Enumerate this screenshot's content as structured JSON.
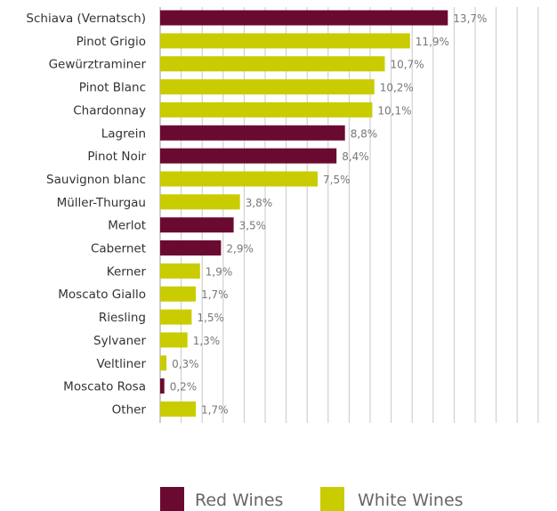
{
  "chart_data": {
    "type": "bar",
    "orientation": "horizontal",
    "title": "",
    "xlabel": "",
    "ylabel": "",
    "xlim": [
      0,
      18.75
    ],
    "grid": true,
    "legend_position": "bottom",
    "categories": [
      "Schiava (Vernatsch)",
      "Pinot Grigio",
      "Gewürztraminer",
      "Pinot Blanc",
      "Chardonnay",
      "Lagrein",
      "Pinot Noir",
      "Sauvignon blanc",
      "Müller-Thurgau",
      "Merlot",
      "Cabernet",
      "Kerner",
      "Moscato Giallo",
      "Riesling",
      "Sylvaner",
      "Veltliner",
      "Moscato Rosa",
      "Other"
    ],
    "values": [
      13.7,
      11.9,
      10.7,
      10.2,
      10.1,
      8.8,
      8.4,
      7.5,
      3.8,
      3.5,
      2.9,
      1.9,
      1.7,
      1.5,
      1.3,
      0.3,
      0.2,
      1.7
    ],
    "value_labels": [
      "13,7%",
      "11,9%",
      "10,7%",
      "10,2%",
      "10,1%",
      "8,8%",
      "8,4%",
      "7,5%",
      "3,8%",
      "3,5%",
      "2,9%",
      "1,9%",
      "1,7%",
      "1,5%",
      "1,3%",
      "0,3%",
      "0,2%",
      "1,7%"
    ],
    "groups": [
      "red",
      "white",
      "white",
      "white",
      "white",
      "red",
      "red",
      "white",
      "white",
      "red",
      "red",
      "white",
      "white",
      "white",
      "white",
      "white",
      "red",
      "white"
    ],
    "legend": [
      {
        "key": "red",
        "label": "Red Wines",
        "color": "#6b0a30"
      },
      {
        "key": "white",
        "label": "White Wines",
        "color": "#c9cc00"
      }
    ]
  }
}
